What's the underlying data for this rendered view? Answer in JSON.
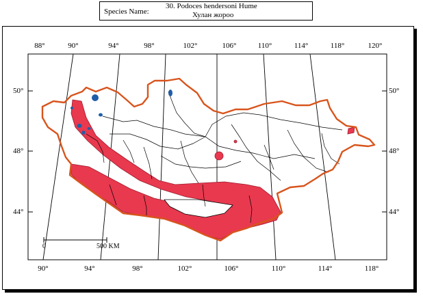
{
  "header": {
    "label": "Species Name:",
    "scientific_name": "30.  Podoces hendersoni  Hume",
    "local_name": "Хулан жороо"
  },
  "map": {
    "top_lon_labels": [
      "88°",
      "90°",
      "94°",
      "98°",
      "102°",
      "106°",
      "110°",
      "114°",
      "118°",
      "120°"
    ],
    "bottom_lon_labels": [
      "90°",
      "94°",
      "98°",
      "102°",
      "106°",
      "110°",
      "114°",
      "118°"
    ],
    "left_lat_labels": [
      "50°",
      "48°",
      "44°"
    ],
    "right_lat_labels": [
      "50°",
      "48°",
      "44°"
    ],
    "scale_bar": {
      "start": "0",
      "end": "500 KM"
    },
    "colors": {
      "border": "#d8541c",
      "range": "#e8394f",
      "rivers": "#000000",
      "lakes": "#1f5ea8"
    }
  }
}
